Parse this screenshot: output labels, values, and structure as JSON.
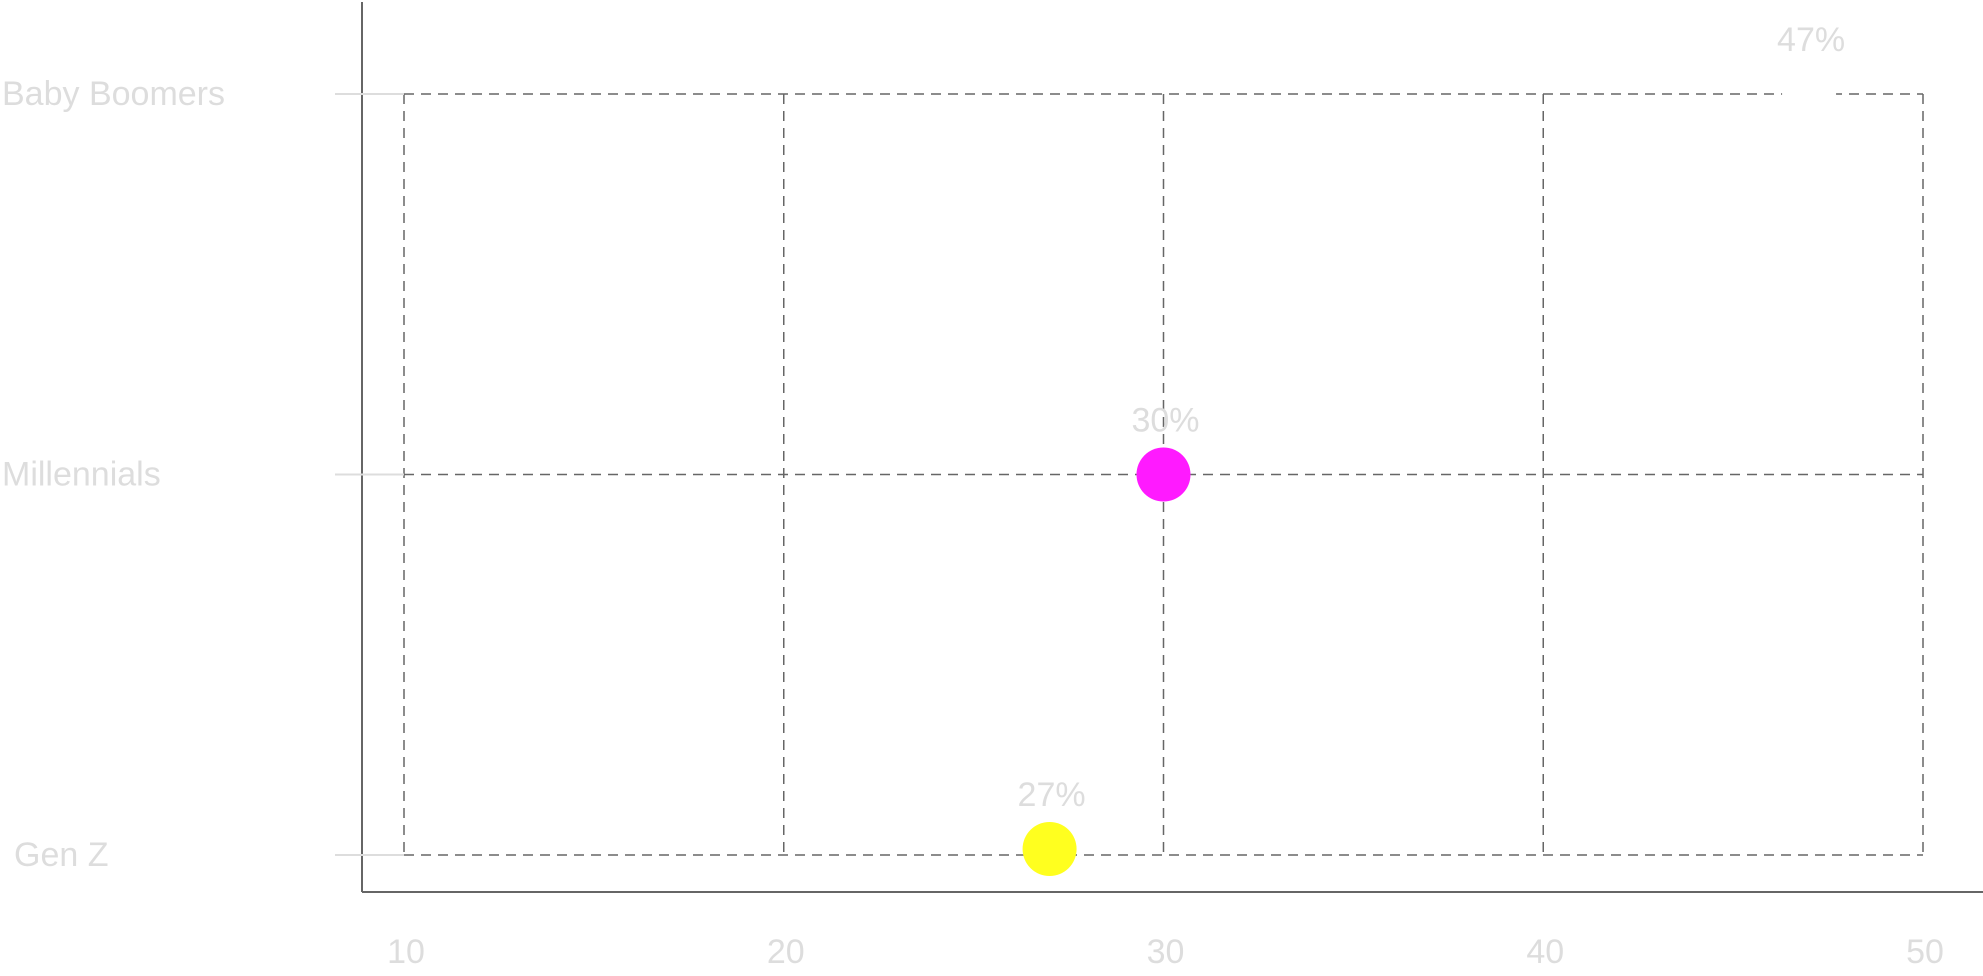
{
  "chart_data": {
    "type": "scatter",
    "title": "",
    "xlabel": "",
    "ylabel": "",
    "x_ticks": [
      10,
      20,
      30,
      40,
      50
    ],
    "xlim": [
      10,
      50
    ],
    "categories": [
      "Gen Z",
      "Millennials",
      "Baby Boomers"
    ],
    "grid": true,
    "points": [
      {
        "category": "Gen Z",
        "x": 27,
        "label": "27%",
        "color": "#ffff1f"
      },
      {
        "category": "Millennials",
        "x": 30,
        "label": "30%",
        "color": "#ff1aff"
      },
      {
        "category": "Baby Boomers",
        "x": 47,
        "label": "47%",
        "color": "#ffffff"
      }
    ]
  },
  "colors": {
    "grid": "#666666",
    "axis": "#666666",
    "tick": "#dddddd",
    "text": "#dddddd"
  }
}
